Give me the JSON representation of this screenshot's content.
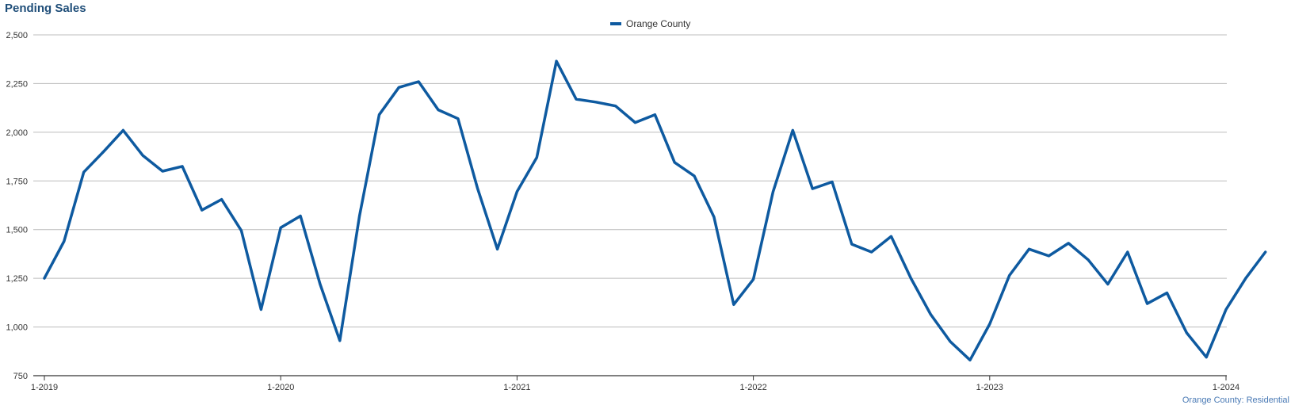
{
  "title": "Pending Sales",
  "footer": "Orange County: Residential",
  "colors": {
    "series": "#0e5aa0",
    "grid": "#bcbcbc",
    "axis": "#333333",
    "title": "#1f4e79",
    "footer": "#4a7ab5"
  },
  "chart_data": {
    "type": "line",
    "title": "Pending Sales",
    "xlabel": "",
    "ylabel": "",
    "ylim": [
      750,
      2500
    ],
    "yticks": [
      750,
      1000,
      1250,
      1500,
      1750,
      2000,
      2250,
      2500
    ],
    "ytick_labels": [
      "750",
      "1,000",
      "1,250",
      "1,500",
      "1,750",
      "2,000",
      "2,250",
      "2,500"
    ],
    "xticks": [
      "1-2019",
      "1-2020",
      "1-2021",
      "1-2022",
      "1-2023",
      "1-2024"
    ],
    "grid": "horizontal",
    "legend_position": "top-center",
    "series": [
      {
        "name": "Orange County",
        "start": "2019-01",
        "values": [
          1250,
          1440,
          1795,
          1900,
          2010,
          1880,
          1800,
          1825,
          1600,
          1655,
          1495,
          1090,
          1510,
          1570,
          1220,
          930,
          1570,
          2090,
          2230,
          2260,
          2115,
          2070,
          1710,
          1400,
          1695,
          1870,
          2365,
          2170,
          2155,
          2135,
          2050,
          2090,
          1845,
          1775,
          1565,
          1115,
          1245,
          1695,
          2010,
          1710,
          1745,
          1425,
          1385,
          1465,
          1250,
          1065,
          925,
          830,
          1015,
          1265,
          1400,
          1365,
          1430,
          1345,
          1220,
          1385,
          1120,
          1175,
          970,
          845,
          1090,
          1250,
          1385
        ]
      }
    ]
  }
}
